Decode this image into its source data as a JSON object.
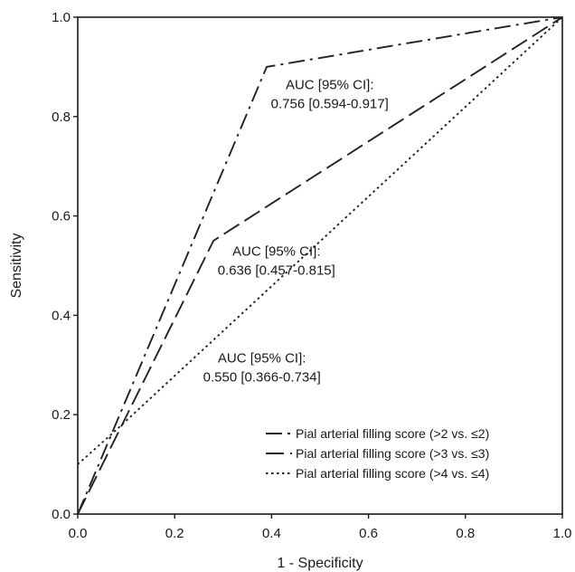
{
  "chart_data": {
    "type": "line",
    "title": "",
    "xlabel": "1 - Specificity",
    "ylabel": "Sensitivity",
    "xlim": [
      0.0,
      1.0
    ],
    "ylim": [
      0.0,
      1.0
    ],
    "x_ticks": [
      "0.0",
      "0.2",
      "0.4",
      "0.6",
      "0.8",
      "1.0"
    ],
    "y_ticks": [
      "0.0",
      "0.2",
      "0.4",
      "0.6",
      "0.8",
      "1.0"
    ],
    "grid": false,
    "legend_position": "bottom-right",
    "series": [
      {
        "name": "Pial arterial filling score (>2 vs. ≤2)",
        "line_style": "dash-dot",
        "color": "#222222",
        "points": [
          [
            0.0,
            0.0
          ],
          [
            0.39,
            0.9
          ],
          [
            1.0,
            1.0
          ]
        ]
      },
      {
        "name": "Pial arterial filling score (>3 vs. ≤3)",
        "line_style": "long-dash",
        "color": "#222222",
        "points": [
          [
            0.0,
            0.0
          ],
          [
            0.28,
            0.55
          ],
          [
            1.0,
            1.0
          ]
        ]
      },
      {
        "name": "Pial arterial filling score (>4 vs. ≤4)",
        "line_style": "dotted",
        "color": "#222222",
        "points": [
          [
            0.0,
            0.1
          ],
          [
            0.08,
            0.17
          ],
          [
            1.0,
            1.0
          ]
        ]
      }
    ],
    "annotations": [
      {
        "line1": "AUC [95% CI]:",
        "line2": "0.756 [0.594-0.917]",
        "x": 0.52,
        "y": 0.855
      },
      {
        "line1": "AUC [95% CI]:",
        "line2": "0.636 [0.457-0.815]",
        "x": 0.41,
        "y": 0.52
      },
      {
        "line1": "AUC [95% CI]:",
        "line2": "0.550 [0.366-0.734]",
        "x": 0.38,
        "y": 0.305
      }
    ]
  }
}
